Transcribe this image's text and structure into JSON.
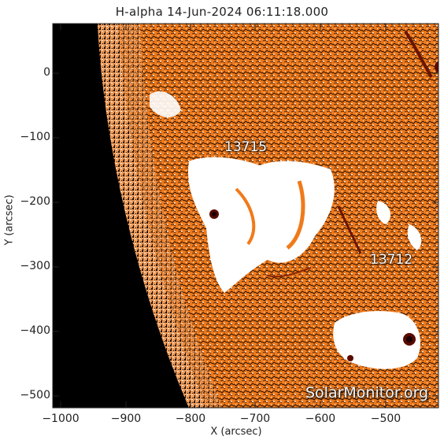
{
  "title": "H-alpha 14-Jun-2024 06:11:18.000",
  "x_axis": {
    "label": "X (arcsec)",
    "ticks": [
      "−1000",
      "−900",
      "−800",
      "−700",
      "−600",
      "−500"
    ]
  },
  "y_axis": {
    "label": "Y (arcsec)",
    "ticks": [
      "0",
      "−100",
      "−200",
      "−300",
      "−400",
      "−500"
    ]
  },
  "regions": [
    {
      "id": "13715",
      "label": "13715"
    },
    {
      "id": "13712",
      "label": "13712"
    }
  ],
  "watermark": "SolarMonitor.org",
  "colors": {
    "background": "#000000",
    "surface": "#f07a1a",
    "plage": "#ffffff",
    "sunspot": "#5a0a00"
  }
}
